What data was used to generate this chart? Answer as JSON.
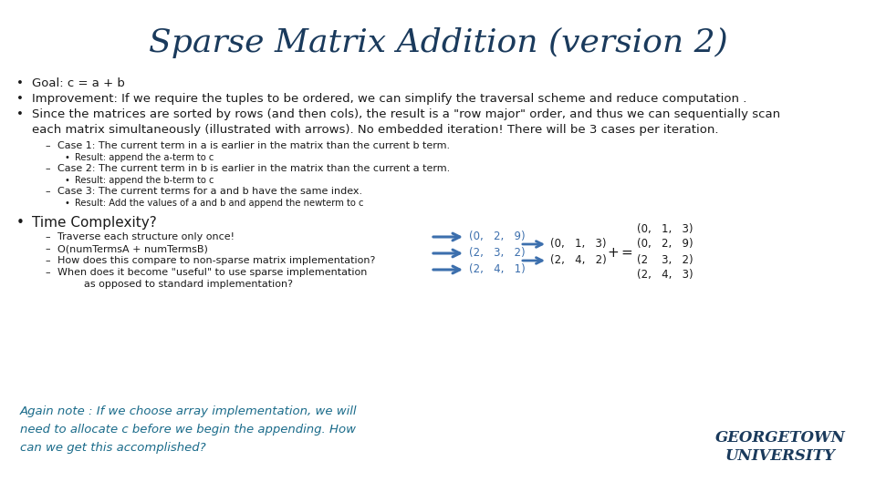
{
  "title": "Sparse Matrix Addition (version 2)",
  "title_color": "#1a3a5c",
  "title_fontsize": 26,
  "body_color": "#1a1a1a",
  "highlight_color": "#1a6b8a",
  "blue_color": "#3c6fad",
  "background": "#ffffff",
  "bullet1": "Goal: c = a + b",
  "bullet2": "Improvement: If we require the tuples to be ordered, we can simplify the traversal scheme and reduce computation .",
  "bullet3a": "Since the matrices are sorted by rows (and then cols), the result is a \"row major\" order, and thus we can sequentially scan",
  "bullet3b": "each matrix simultaneously (illustrated with arrows). No embedded iteration! There will be 3 cases per iteration.",
  "case1": "Case 1: The current term in a is earlier in the matrix than the current b term.",
  "case1r": "Result: append the a-term to c",
  "case2": "Case 2: The current term in b is earlier in the matrix than the current a term.",
  "case2r": "Result: append the b-term to c",
  "case3": "Case 3: The current terms for a and b have the same index.",
  "case3r": "Result: Add the values of a and b and append the newterm to c",
  "tc_title": "Time Complexity?",
  "tc1": "Traverse each structure only once!",
  "tc2": "O(numTermsA + numTermsB)",
  "tc3": "How does this compare to non-sparse matrix implementation?",
  "tc4a": "When does it become \"useful\" to use sparse implementation",
  "tc4b": "      as opposed to standard implementation?",
  "footer": "Again note : If we choose array implementation, we will\nneed to allocate c before we begin the appending. How\ncan we get this accomplished?",
  "footer_color": "#1a6b8a",
  "gu_text": "GEORGETOWN\nUNIVERSITY",
  "gu_color": "#1a3a5c",
  "matrix_a": [
    "(0,   2,   9)",
    "(2,   3,   2)",
    "(2,   4,   1)"
  ],
  "matrix_b_top": [
    "(0,   1,   3)"
  ],
  "matrix_b_mid": "(0,   1,   3)",
  "matrix_b_bot": "(2,   4,   2)",
  "matrix_c": [
    "(0,   1,   3)",
    "(0,   2,   9)",
    "(2    3,   2)",
    "(2,   4,   3)"
  ],
  "plus_sign": "+",
  "equals_sign": "="
}
